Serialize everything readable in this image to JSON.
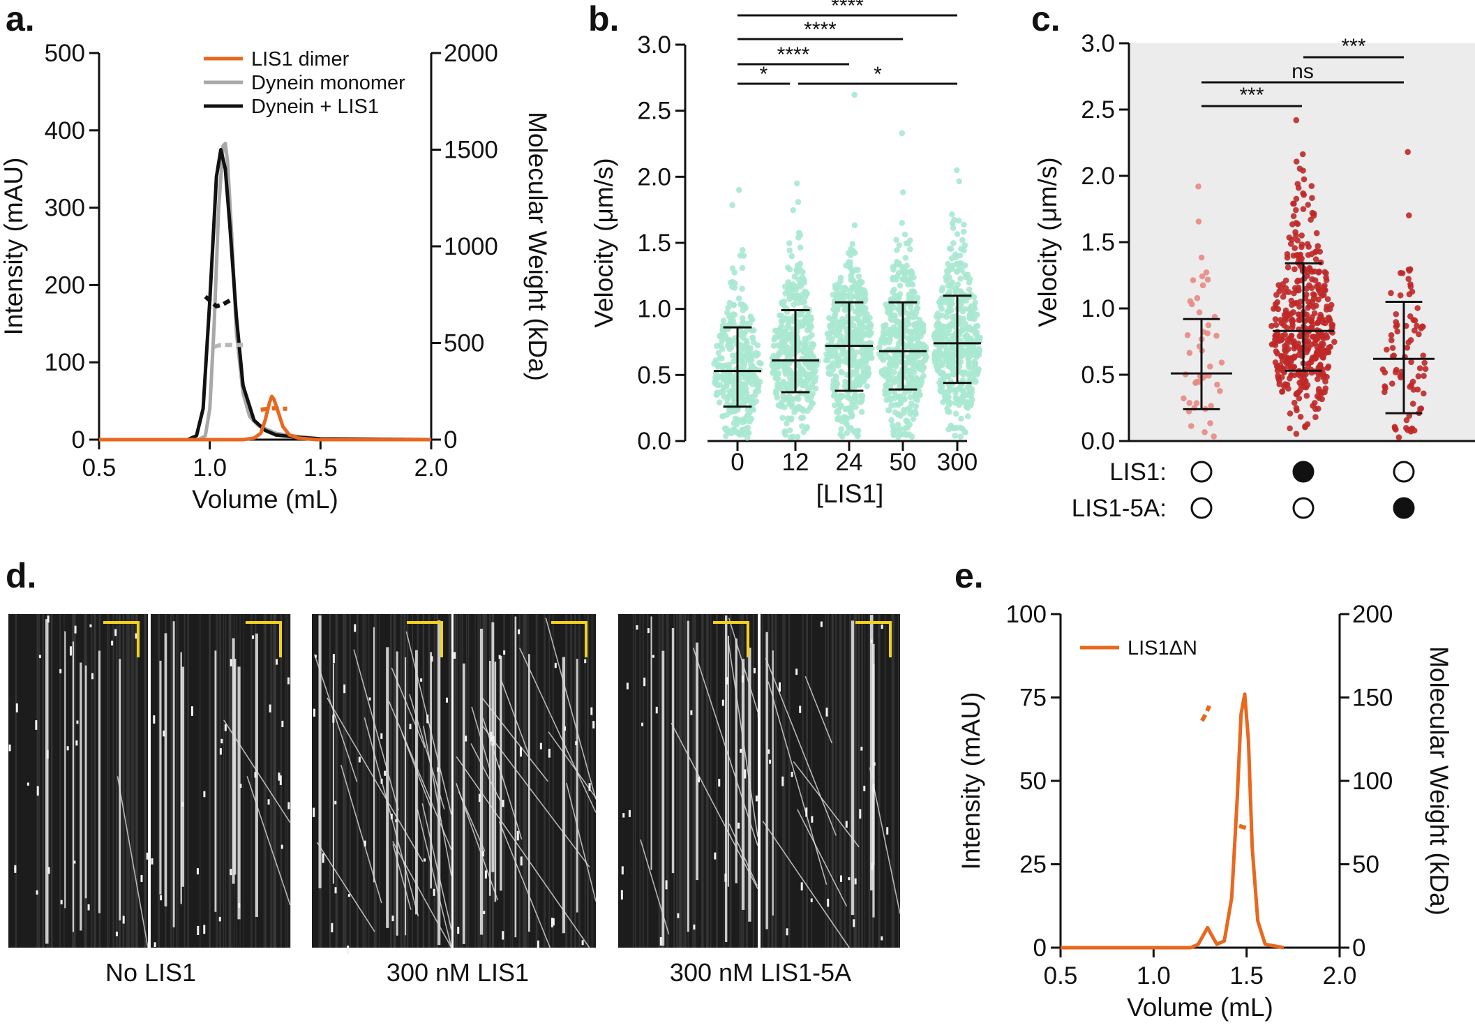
{
  "colors": {
    "orange": "#e8681e",
    "orange_light": "#f0a07a",
    "gray": "#a8a8a8",
    "gray_dashed": "#b8b8b8",
    "black": "#111111",
    "mint": "#a8e8d0",
    "dark_red": "#c02828",
    "light_red": "#e88a84",
    "panel_c_bg": "#ececec",
    "yellow": "#f2d21a"
  },
  "panels": {
    "a": {
      "letter": "a."
    },
    "b": {
      "letter": "b."
    },
    "c": {
      "letter": "c."
    },
    "d": {
      "letter": "d."
    },
    "e": {
      "letter": "e."
    }
  },
  "kymographs": {
    "labels": [
      "No LIS1",
      "300 nM LIS1",
      "300 nM LIS1-5A"
    ]
  },
  "chart_data": [
    {
      "id": "a",
      "type": "line",
      "xlabel": "Volume (mL)",
      "ylabel": "Intensity (mAU)",
      "y2label": "Molecular Weight (kDa)",
      "xlim": [
        0.5,
        2.0
      ],
      "ylim": [
        0,
        500
      ],
      "y2lim": [
        0,
        2000
      ],
      "xticks": [
        "0.5",
        "1.0",
        "1.5",
        "2.0"
      ],
      "yticks": [
        "0",
        "100",
        "200",
        "300",
        "400",
        "500"
      ],
      "y2ticks": [
        "0",
        "500",
        "1000",
        "1500",
        "2000"
      ],
      "legend": [
        "LIS1 dimer",
        "Dynein monomer",
        "Dynein + LIS1"
      ],
      "series": [
        {
          "name": "LIS1 dimer",
          "color": "orange",
          "x": [
            0.5,
            1.15,
            1.2,
            1.23,
            1.25,
            1.27,
            1.28,
            1.29,
            1.31,
            1.33,
            1.36,
            1.4,
            1.48,
            2.0
          ],
          "y": [
            0,
            0,
            2,
            8,
            25,
            48,
            56,
            52,
            35,
            17,
            6,
            2,
            0,
            0
          ]
        },
        {
          "name": "Dynein monomer",
          "color": "gray",
          "x": [
            0.5,
            0.95,
            0.98,
            1.0,
            1.02,
            1.04,
            1.06,
            1.07,
            1.08,
            1.1,
            1.12,
            1.15,
            1.18,
            1.22,
            1.3,
            1.4,
            1.5,
            2.0
          ],
          "y": [
            0,
            0,
            5,
            40,
            150,
            300,
            380,
            383,
            360,
            260,
            140,
            60,
            30,
            18,
            8,
            4,
            1,
            0
          ]
        },
        {
          "name": "Dynein + LIS1",
          "color": "black",
          "x": [
            0.5,
            0.9,
            0.94,
            0.97,
            1.0,
            1.03,
            1.05,
            1.07,
            1.09,
            1.12,
            1.15,
            1.2,
            1.25,
            1.3,
            1.4,
            1.5,
            2.0
          ],
          "y": [
            0,
            0,
            5,
            40,
            180,
            340,
            375,
            350,
            280,
            160,
            70,
            25,
            12,
            6,
            3,
            1,
            0
          ]
        }
      ],
      "mw_dashed": [
        {
          "name": "Dynein + LIS1 MW",
          "color": "black",
          "x": [
            0.98,
            1.0,
            1.03,
            1.06,
            1.09,
            1.12
          ],
          "mw": [
            740,
            720,
            690,
            700,
            720,
            720
          ]
        },
        {
          "name": "Dynein monomer MW",
          "color": "gray_dashed",
          "x": [
            1.02,
            1.05,
            1.08,
            1.11,
            1.15
          ],
          "mw": [
            480,
            490,
            490,
            490,
            490
          ]
        },
        {
          "name": "LIS1 dimer MW",
          "color": "orange",
          "x": [
            1.23,
            1.26,
            1.29,
            1.32,
            1.35
          ],
          "mw": [
            155,
            160,
            162,
            160,
            160
          ]
        }
      ]
    },
    {
      "id": "b",
      "type": "scatter",
      "xlabel": "[LIS1]",
      "ylabel": "Velocity (μm/s)",
      "ylim": [
        0,
        3.0
      ],
      "yticks": [
        "0.0",
        "0.5",
        "1.0",
        "1.5",
        "2.0",
        "2.5",
        "3.0"
      ],
      "categories": [
        "0",
        "12",
        "24",
        "50",
        "300"
      ],
      "means": [
        0.53,
        0.61,
        0.72,
        0.68,
        0.74
      ],
      "sd_low": [
        0.26,
        0.37,
        0.38,
        0.39,
        0.44
      ],
      "sd_high": [
        0.86,
        0.99,
        1.05,
        1.05,
        1.1
      ],
      "maxes": [
        1.9,
        1.95,
        2.62,
        2.33,
        2.05
      ],
      "n_points": [
        340,
        380,
        420,
        420,
        440
      ],
      "significance": [
        {
          "from": 0,
          "to": 1,
          "label": "*"
        },
        {
          "from": 1,
          "to": 4,
          "label": "*"
        },
        {
          "from": 0,
          "to": 2,
          "label": "****"
        },
        {
          "from": 0,
          "to": 3,
          "label": "****"
        },
        {
          "from": 0,
          "to": 4,
          "label": "****"
        }
      ]
    },
    {
      "id": "c",
      "type": "scatter",
      "ylabel": "Velocity (μm/s)",
      "ylim": [
        0,
        3.0
      ],
      "yticks": [
        "0.0",
        "0.5",
        "1.0",
        "1.5",
        "2.0",
        "2.5",
        "3.0"
      ],
      "groups": [
        {
          "lis1": false,
          "lis1_5a": false,
          "mean": 0.51,
          "sd_low": 0.24,
          "sd_high": 0.92,
          "max": 1.92,
          "n": 45,
          "color": "light_red"
        },
        {
          "lis1": true,
          "lis1_5a": false,
          "mean": 0.83,
          "sd_low": 0.53,
          "sd_high": 1.34,
          "max": 2.42,
          "n": 420,
          "color": "dark_red"
        },
        {
          "lis1": false,
          "lis1_5a": true,
          "mean": 0.62,
          "sd_low": 0.21,
          "sd_high": 1.05,
          "max": 2.18,
          "n": 80,
          "color": "dark_red"
        }
      ],
      "row_labels": [
        "LIS1:",
        "LIS1-5A:"
      ],
      "significance": [
        {
          "from": 0,
          "to": 1,
          "label": "***"
        },
        {
          "from": 0,
          "to": 2,
          "label": "ns"
        },
        {
          "from": 1,
          "to": 2,
          "label": "***"
        }
      ]
    },
    {
      "id": "e",
      "type": "line",
      "xlabel": "Volume (mL)",
      "ylabel": "Intensity (mAU)",
      "y2label": "Molecular Weight (kDa)",
      "xlim": [
        0.5,
        2.0
      ],
      "ylim": [
        0,
        100
      ],
      "y2lim": [
        0,
        200
      ],
      "xticks": [
        "0.5",
        "1.0",
        "1.5",
        "2.0"
      ],
      "yticks": [
        "0",
        "25",
        "50",
        "75",
        "100"
      ],
      "y2ticks": [
        "0",
        "50",
        "100",
        "150",
        "200"
      ],
      "legend": [
        "LIS1ΔN"
      ],
      "series": [
        {
          "name": "LIS1ΔN",
          "color": "orange",
          "x": [
            0.5,
            1.2,
            1.24,
            1.27,
            1.29,
            1.31,
            1.34,
            1.38,
            1.42,
            1.45,
            1.47,
            1.49,
            1.51,
            1.53,
            1.56,
            1.6,
            1.7
          ],
          "y": [
            0,
            0,
            1,
            4,
            6,
            4,
            1,
            2,
            15,
            45,
            70,
            76,
            62,
            30,
            8,
            1,
            0
          ]
        }
      ],
      "mw_dashed": [
        {
          "name": "LIS1ΔN MW peak 1",
          "color": "orange",
          "x": [
            1.26,
            1.28,
            1.3
          ],
          "mw": [
            136,
            140,
            145
          ]
        },
        {
          "name": "LIS1ΔN MW peak 2",
          "color": "orange",
          "x": [
            1.46,
            1.49,
            1.52
          ],
          "mw": [
            73,
            72,
            71
          ]
        }
      ]
    }
  ]
}
